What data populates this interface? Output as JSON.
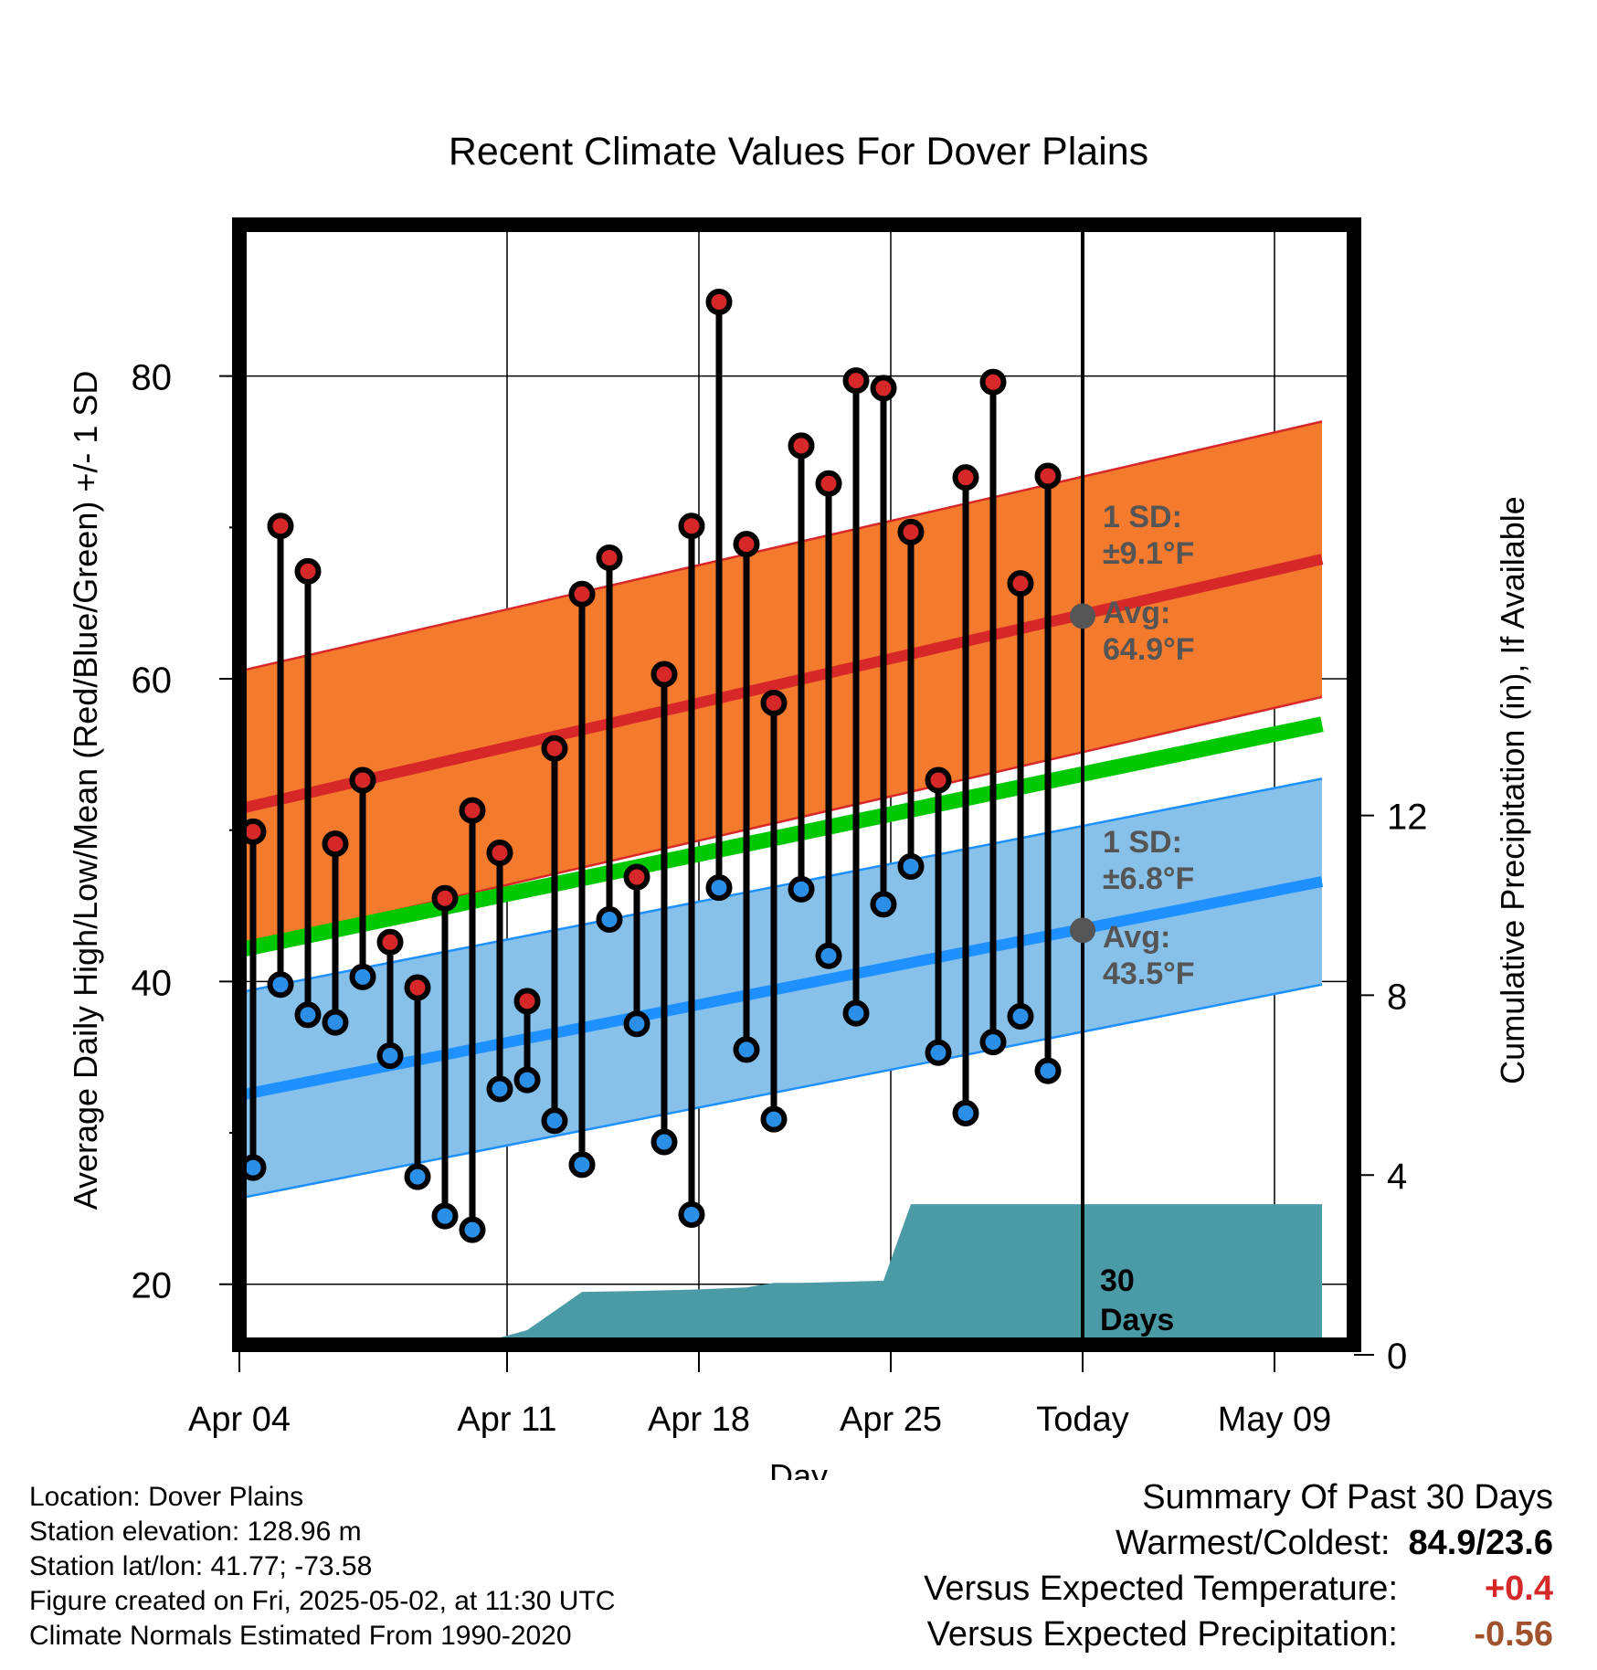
{
  "chart_data": {
    "type": "line",
    "title": "Recent Climate Values For Dover Plains",
    "xlabel": "Day",
    "ylabel_left": "Average Daily High/Low/Mean (Red/Blue/Green) +/- 1 SD",
    "ylabel_right": "Cumulative Precipitation (in), If Available",
    "ylim": [
      16,
      90
    ],
    "y_ticks": [
      20,
      40,
      60,
      80
    ],
    "y_ticks_right": [
      0,
      4,
      8,
      12
    ],
    "x_tick_labels": [
      "Apr 04",
      "Apr 11",
      "Apr 18",
      "Apr 25",
      "Today",
      "May 09"
    ],
    "today_label": [
      "30",
      "Days"
    ],
    "series": [
      {
        "name": "High",
        "x": [
          "Apr 02",
          "Apr 03",
          "Apr 04",
          "Apr 05",
          "Apr 06",
          "Apr 07",
          "Apr 08",
          "Apr 09",
          "Apr 10",
          "Apr 11",
          "Apr 12",
          "Apr 13",
          "Apr 14",
          "Apr 15",
          "Apr 16",
          "Apr 17",
          "Apr 18",
          "Apr 19",
          "Apr 20",
          "Apr 21",
          "Apr 22",
          "Apr 23",
          "Apr 24",
          "Apr 25",
          "Apr 26",
          "Apr 27",
          "Apr 28",
          "Apr 29",
          "Apr 30",
          "May 01"
        ],
        "values": [
          49.9,
          70.1,
          67.1,
          49.1,
          53.3,
          42.6,
          39.6,
          45.5,
          51.3,
          48.5,
          38.7,
          55.4,
          65.6,
          68.0,
          46.9,
          60.3,
          70.1,
          84.9,
          68.9,
          58.4,
          75.4,
          72.9,
          79.7,
          79.2,
          69.7,
          53.3,
          73.3,
          79.6,
          66.3,
          73.4
        ]
      },
      {
        "name": "Low",
        "x": [
          "Apr 02",
          "Apr 03",
          "Apr 04",
          "Apr 05",
          "Apr 06",
          "Apr 07",
          "Apr 08",
          "Apr 09",
          "Apr 10",
          "Apr 11",
          "Apr 12",
          "Apr 13",
          "Apr 14",
          "Apr 15",
          "Apr 16",
          "Apr 17",
          "Apr 18",
          "Apr 19",
          "Apr 20",
          "Apr 21",
          "Apr 22",
          "Apr 23",
          "Apr 24",
          "Apr 25",
          "Apr 26",
          "Apr 27",
          "Apr 28",
          "Apr 29",
          "Apr 30",
          "May 01"
        ],
        "values": [
          27.7,
          39.8,
          37.8,
          37.3,
          40.3,
          35.1,
          27.1,
          24.5,
          23.6,
          32.9,
          33.5,
          30.8,
          27.9,
          44.1,
          37.2,
          29.4,
          24.6,
          46.2,
          35.5,
          30.9,
          46.1,
          41.7,
          37.9,
          45.1,
          47.6,
          35.3,
          31.3,
          36.0,
          37.7,
          34.1
        ]
      },
      {
        "name": "Normal High",
        "x": [
          "Apr 01",
          "May 11"
        ],
        "values": [
          51.2,
          67.9
        ],
        "sd": 9.1,
        "color": "#d62828"
      },
      {
        "name": "Normal Low",
        "x": [
          "Apr 01",
          "May 11"
        ],
        "values": [
          32.3,
          46.6
        ],
        "sd": 6.8,
        "color": "#1e90ff"
      },
      {
        "name": "Normal Mean",
        "x": [
          "Apr 01",
          "May 11"
        ],
        "values": [
          41.9,
          57.0
        ],
        "color": "#00c800"
      },
      {
        "name": "Cumulative Precipitation",
        "axis": "right",
        "x": [
          "Apr 04",
          "Apr 06",
          "Apr 08",
          "Apr 10",
          "Apr 11",
          "Apr 12",
          "Apr 14",
          "Apr 16",
          "Apr 18",
          "Apr 20",
          "Apr 21",
          "Apr 22",
          "Apr 25",
          "Apr 26",
          "May 11"
        ],
        "values": [
          0.0,
          0.18,
          0.28,
          0.3,
          0.38,
          0.55,
          1.4,
          1.42,
          1.45,
          1.5,
          1.6,
          1.6,
          1.65,
          3.35,
          3.35
        ]
      }
    ],
    "annotations": {
      "high_sd_label": "1 SD:",
      "high_sd_value": "±9.1°F",
      "high_avg_label": "Avg:",
      "high_avg_value": "64.9°F",
      "low_sd_label": "1 SD:",
      "low_sd_value": "±6.8°F",
      "low_avg_label": "Avg:",
      "low_avg_value": "43.5°F"
    },
    "colors": {
      "high_band": "#f47a2e",
      "low_band": "#87c1e9",
      "high_dot": "#d62828",
      "low_dot": "#2b8fe8",
      "mean_line": "#00c800",
      "precip": "#4a9ba5"
    }
  },
  "info": {
    "location": "Location: Dover Plains",
    "elevation": "Station elevation: 128.96 m",
    "latlon": "Station lat/lon: 41.77; -73.58",
    "created": "Figure created on Fri, 2025-05-02, at 11:30 UTC",
    "normals": "Climate Normals Estimated From 1990-2020"
  },
  "summary": {
    "heading": "Summary Of Past 30 Days",
    "warm_cold_label": "Warmest/Coldest:",
    "warm_cold_value": "84.9/23.6",
    "temp_label": "Versus Expected Temperature:",
    "temp_value": "+0.4",
    "temp_color": "#d62828",
    "precip_label": "Versus Expected Precipitation:",
    "precip_value": "-0.56",
    "precip_color": "#a0522d"
  }
}
